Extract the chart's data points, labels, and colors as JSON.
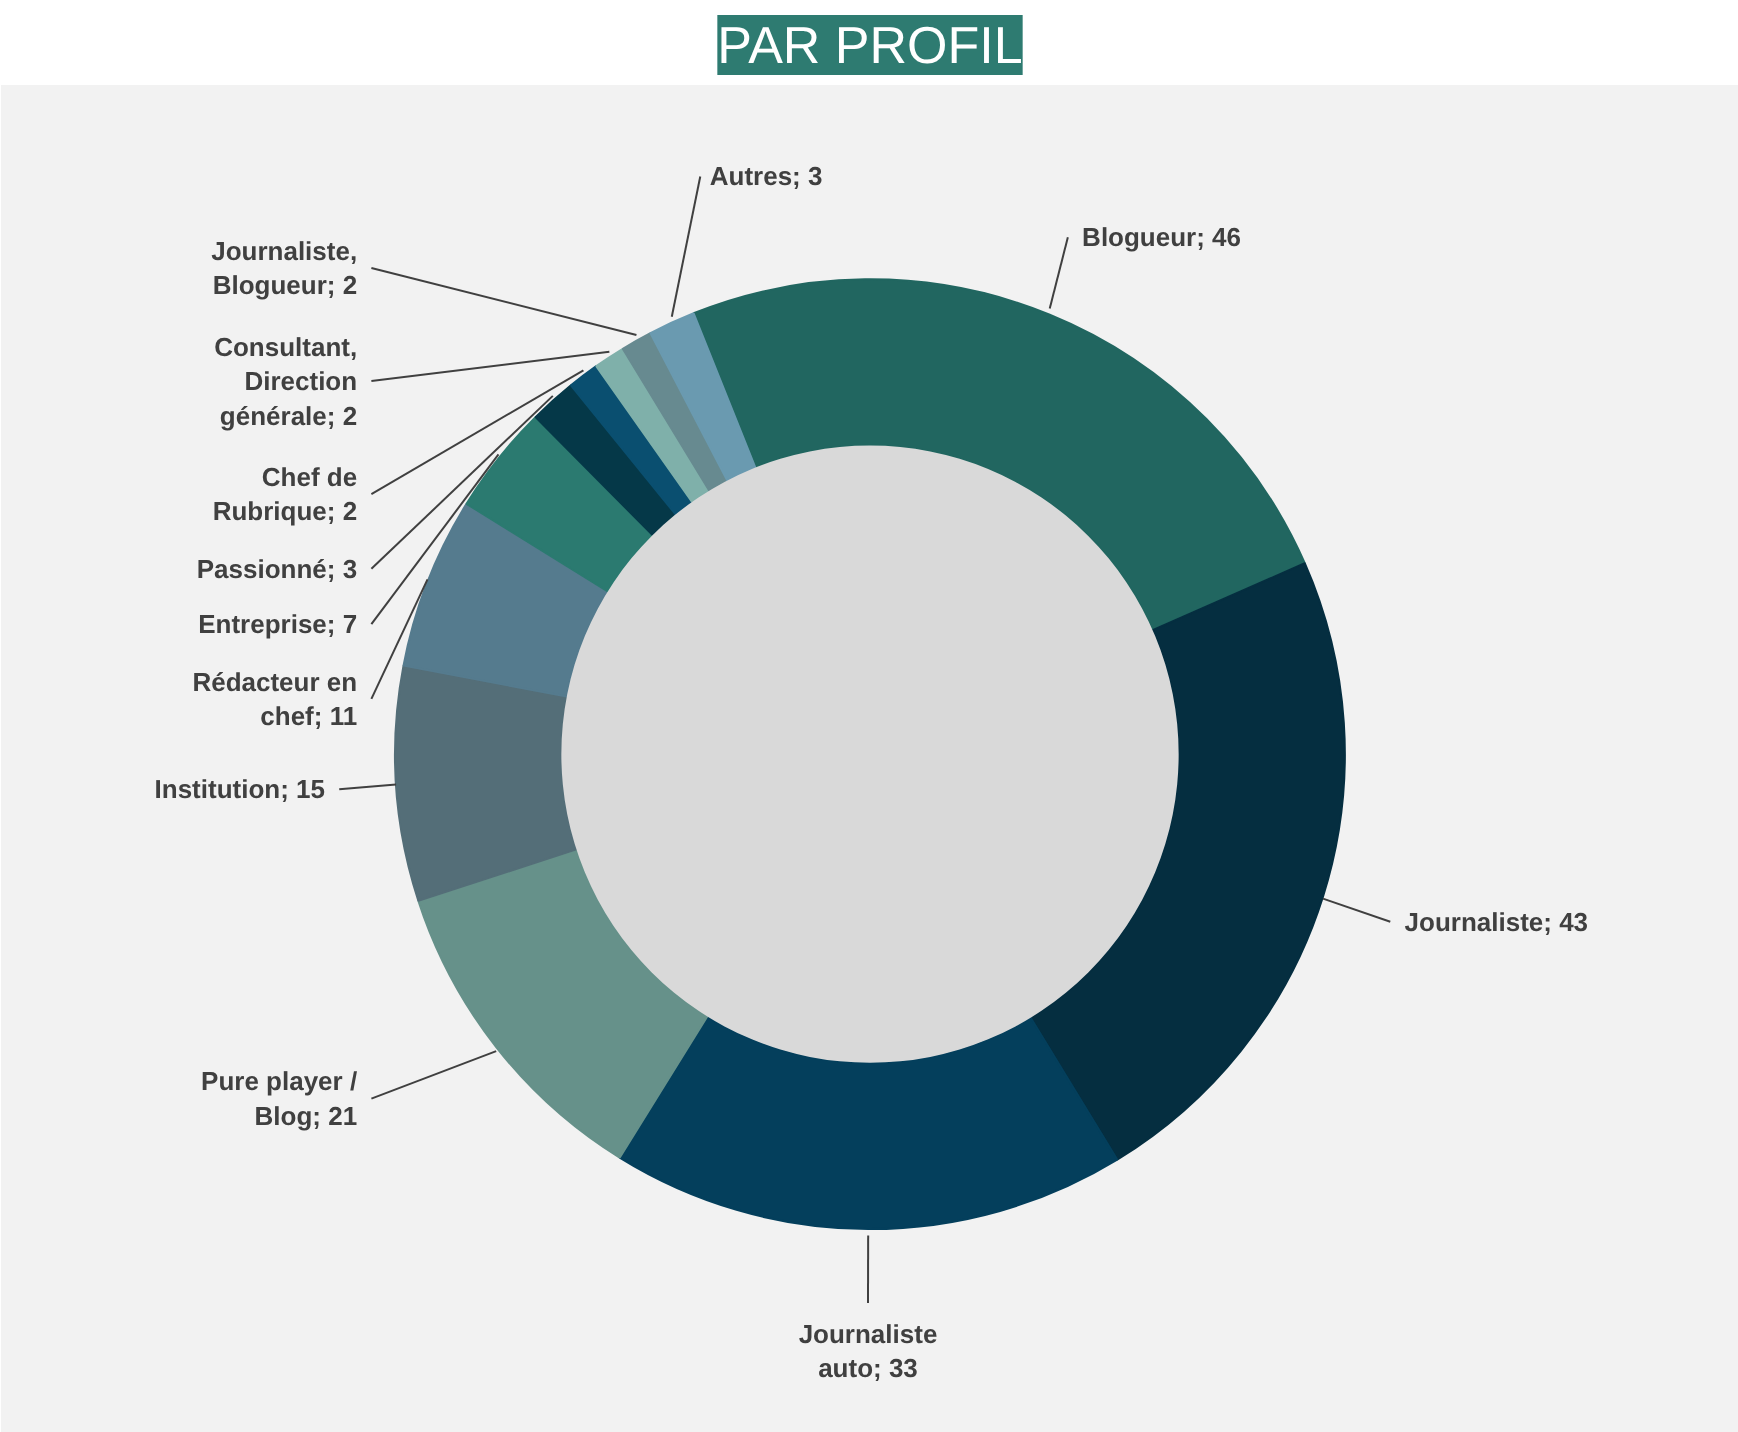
{
  "chart_data": {
    "type": "donut",
    "title": "PAR PROFIL",
    "categories": [
      null,
      null,
      null,
      null,
      null,
      null,
      null,
      null,
      null,
      null,
      null,
      null
    ],
    "values": [
      46,
      43,
      33,
      21,
      15,
      11,
      7,
      3,
      2,
      2,
      2,
      3
    ],
    "colors": [
      "#216660",
      "#052e40",
      "#043f5c",
      "#66918a",
      "#546e78",
      "#557b8e",
      "#2b7a70",
      "#053848",
      "#0a4f70",
      "#7fb0aa",
      "#678a90",
      "#6a9ab0"
    ],
    "value_labels": [
      "Blogueur; 46",
      "Journaliste; 43",
      "Journaliste auto; 33",
      "Pure player / Blog; 21",
      "Institution; 15",
      "Rédacteur en chef; 11",
      "Entreprise; 7",
      "Passionné; 3",
      "Chef de Rubrique; 2",
      "Consultant, Direction générale; 2",
      "Journaliste, Blogueur; 2",
      "Autres; 3"
    ],
    "legend": false
  }
}
